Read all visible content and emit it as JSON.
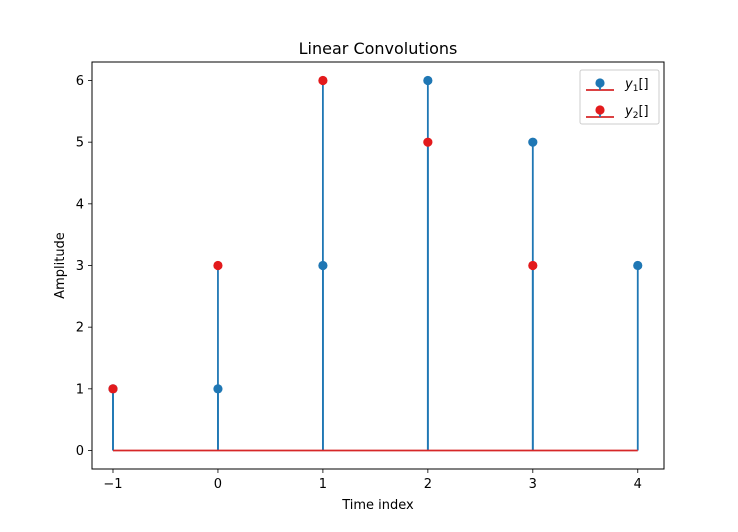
{
  "chart_data": {
    "type": "stem",
    "title": "Linear Convolutions",
    "xlabel": "Time index",
    "ylabel": "Amplitude",
    "xlim": [
      -1.2,
      4.25
    ],
    "ylim": [
      -0.3,
      6.3
    ],
    "x_ticks": [
      -1,
      0,
      1,
      2,
      3,
      4
    ],
    "x_tick_labels": [
      "−1",
      "0",
      "1",
      "2",
      "3",
      "4"
    ],
    "y_ticks": [
      0,
      1,
      2,
      3,
      4,
      5,
      6
    ],
    "y_tick_labels": [
      "0",
      "1",
      "2",
      "3",
      "4",
      "5",
      "6"
    ],
    "grid": false,
    "legend_position": "top-right",
    "baseline_color": "#d62728",
    "series": [
      {
        "name": "y1[]",
        "legend_base": "y",
        "legend_sub": "1",
        "legend_suffix": "[]",
        "x": [
          -1,
          0,
          1,
          2,
          3,
          4
        ],
        "y": [
          1,
          1,
          3,
          6,
          5,
          3
        ],
        "stem_color": "#1f77b4",
        "marker_color": "#1f77b4"
      },
      {
        "name": "y2[]",
        "legend_base": "y",
        "legend_sub": "2",
        "legend_suffix": "[]",
        "x": [
          -1,
          0,
          1,
          2,
          3
        ],
        "y": [
          1,
          3,
          6,
          5,
          3
        ],
        "stem_color": "#1f77b4",
        "marker_color": "#e31a1c"
      }
    ]
  }
}
